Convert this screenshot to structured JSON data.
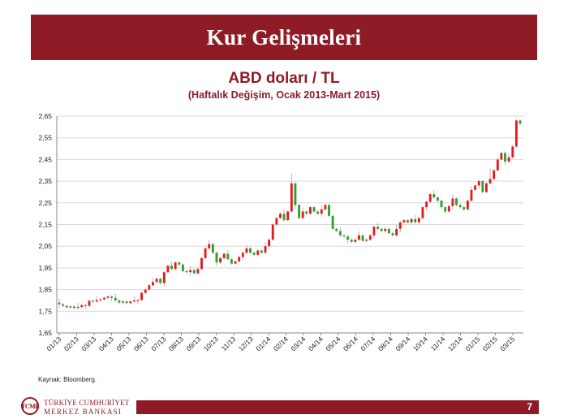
{
  "slide": {
    "title": "Kur Gelişmeleri",
    "source": "Kaynak: Bloomberg.",
    "bank_name_line1": "TÜRKİYE CUMHURİYET",
    "bank_name_line2": "MERKEZ BANKASI",
    "logo_text": "TCMB",
    "page_number": "7"
  },
  "colors": {
    "brand": "#8e1b26",
    "up_candle": "#e41a1c",
    "down_candle": "#2ca02c",
    "grid": "#d9d9d9"
  },
  "chart_data": {
    "type": "candlestick",
    "title": "ABD doları / TL",
    "subtitle": "(Haftalık Değişim, Ocak 2013-Mart 2015)",
    "xlabel": "",
    "ylabel": "",
    "ylim": [
      1.65,
      2.65
    ],
    "y_ticks": [
      "1,65",
      "1,75",
      "1,85",
      "1,95",
      "2,05",
      "2,15",
      "2,25",
      "2,35",
      "2,45",
      "2,55",
      "2,65"
    ],
    "x_ticks": [
      "01/13",
      "02/13",
      "03/13",
      "04/13",
      "05/13",
      "06/13",
      "07/13",
      "08/13",
      "09/13",
      "10/13",
      "11/13",
      "12/13",
      "01/14",
      "02/14",
      "03/14",
      "04/14",
      "05/14",
      "06/14",
      "07/14",
      "08/14",
      "09/14",
      "10/14",
      "11/14",
      "12/14",
      "01/15",
      "02/15",
      "03/15"
    ],
    "grid": "horizontal",
    "legend": "none",
    "series": [
      {
        "values": [
          [
            1.79,
            1.782
          ],
          [
            1.782,
            1.775
          ],
          [
            1.775,
            1.768
          ],
          [
            1.768,
            1.772
          ],
          [
            1.772,
            1.765
          ],
          [
            1.765,
            1.77
          ],
          [
            1.77,
            1.778
          ],
          [
            1.778,
            1.775
          ],
          [
            1.775,
            1.798
          ],
          [
            1.798,
            1.795
          ],
          [
            1.795,
            1.802
          ],
          [
            1.802,
            1.805
          ],
          [
            1.805,
            1.812
          ],
          [
            1.812,
            1.818
          ],
          [
            1.818,
            1.812
          ],
          [
            1.812,
            1.8
          ],
          [
            1.8,
            1.79
          ],
          [
            1.79,
            1.795
          ],
          [
            1.795,
            1.788
          ],
          [
            1.788,
            1.795
          ],
          [
            1.795,
            1.8
          ],
          [
            1.8,
            1.802
          ],
          [
            1.802,
            1.835
          ],
          [
            1.835,
            1.85
          ],
          [
            1.85,
            1.87
          ],
          [
            1.87,
            1.885
          ],
          [
            1.885,
            1.9
          ],
          [
            1.9,
            1.88
          ],
          [
            1.88,
            1.93
          ],
          [
            1.93,
            1.96
          ],
          [
            1.96,
            1.945
          ],
          [
            1.945,
            1.975
          ],
          [
            1.975,
            1.965
          ],
          [
            1.965,
            1.935
          ],
          [
            1.935,
            1.93
          ],
          [
            1.93,
            1.94
          ],
          [
            1.94,
            1.925
          ],
          [
            1.925,
            1.945
          ],
          [
            1.945,
            1.995
          ],
          [
            1.995,
            2.04
          ],
          [
            2.04,
            2.06
          ],
          [
            2.06,
            2.02
          ],
          [
            2.02,
            1.975
          ],
          [
            1.975,
            1.995
          ],
          [
            1.995,
            2.015
          ],
          [
            2.015,
            1.99
          ],
          [
            1.99,
            1.97
          ],
          [
            1.97,
            1.98
          ],
          [
            1.98,
            2.0
          ],
          [
            2.0,
            2.02
          ],
          [
            2.02,
            2.04
          ],
          [
            2.04,
            2.02
          ],
          [
            2.02,
            2.01
          ],
          [
            2.01,
            2.03
          ],
          [
            2.03,
            2.02
          ],
          [
            2.02,
            2.05
          ],
          [
            2.05,
            2.08
          ],
          [
            2.08,
            2.15
          ],
          [
            2.15,
            2.18
          ],
          [
            2.18,
            2.2
          ],
          [
            2.2,
            2.17
          ],
          [
            2.17,
            2.21
          ],
          [
            2.21,
            2.34
          ],
          [
            2.34,
            2.24
          ],
          [
            2.24,
            2.18
          ],
          [
            2.18,
            2.21
          ],
          [
            2.21,
            2.2
          ],
          [
            2.2,
            2.23
          ],
          [
            2.23,
            2.21
          ],
          [
            2.21,
            2.2
          ],
          [
            2.2,
            2.22
          ],
          [
            2.22,
            2.24
          ],
          [
            2.24,
            2.19
          ],
          [
            2.19,
            2.13
          ],
          [
            2.13,
            2.12
          ],
          [
            2.12,
            2.1
          ],
          [
            2.1,
            2.095
          ],
          [
            2.095,
            2.08
          ],
          [
            2.08,
            2.07
          ],
          [
            2.07,
            2.08
          ],
          [
            2.08,
            2.1
          ],
          [
            2.1,
            2.075
          ],
          [
            2.075,
            2.08
          ],
          [
            2.08,
            2.1
          ],
          [
            2.1,
            2.14
          ],
          [
            2.14,
            2.13
          ],
          [
            2.13,
            2.12
          ],
          [
            2.12,
            2.13
          ],
          [
            2.13,
            2.11
          ],
          [
            2.11,
            2.1
          ],
          [
            2.1,
            2.13
          ],
          [
            2.13,
            2.16
          ],
          [
            2.16,
            2.17
          ],
          [
            2.17,
            2.16
          ],
          [
            2.16,
            2.175
          ],
          [
            2.175,
            2.16
          ],
          [
            2.16,
            2.18
          ],
          [
            2.18,
            2.23
          ],
          [
            2.23,
            2.255
          ],
          [
            2.255,
            2.29
          ],
          [
            2.29,
            2.275
          ],
          [
            2.275,
            2.26
          ],
          [
            2.26,
            2.23
          ],
          [
            2.23,
            2.21
          ],
          [
            2.21,
            2.235
          ],
          [
            2.235,
            2.27
          ],
          [
            2.27,
            2.24
          ],
          [
            2.24,
            2.23
          ],
          [
            2.23,
            2.22
          ],
          [
            2.22,
            2.26
          ],
          [
            2.26,
            2.31
          ],
          [
            2.31,
            2.33
          ],
          [
            2.33,
            2.35
          ],
          [
            2.35,
            2.3
          ],
          [
            2.3,
            2.34
          ],
          [
            2.34,
            2.36
          ],
          [
            2.36,
            2.4
          ],
          [
            2.4,
            2.45
          ],
          [
            2.45,
            2.48
          ],
          [
            2.48,
            2.44
          ],
          [
            2.44,
            2.46
          ],
          [
            2.46,
            2.51
          ],
          [
            2.51,
            2.63
          ],
          [
            2.63,
            2.615
          ]
        ]
      }
    ]
  }
}
